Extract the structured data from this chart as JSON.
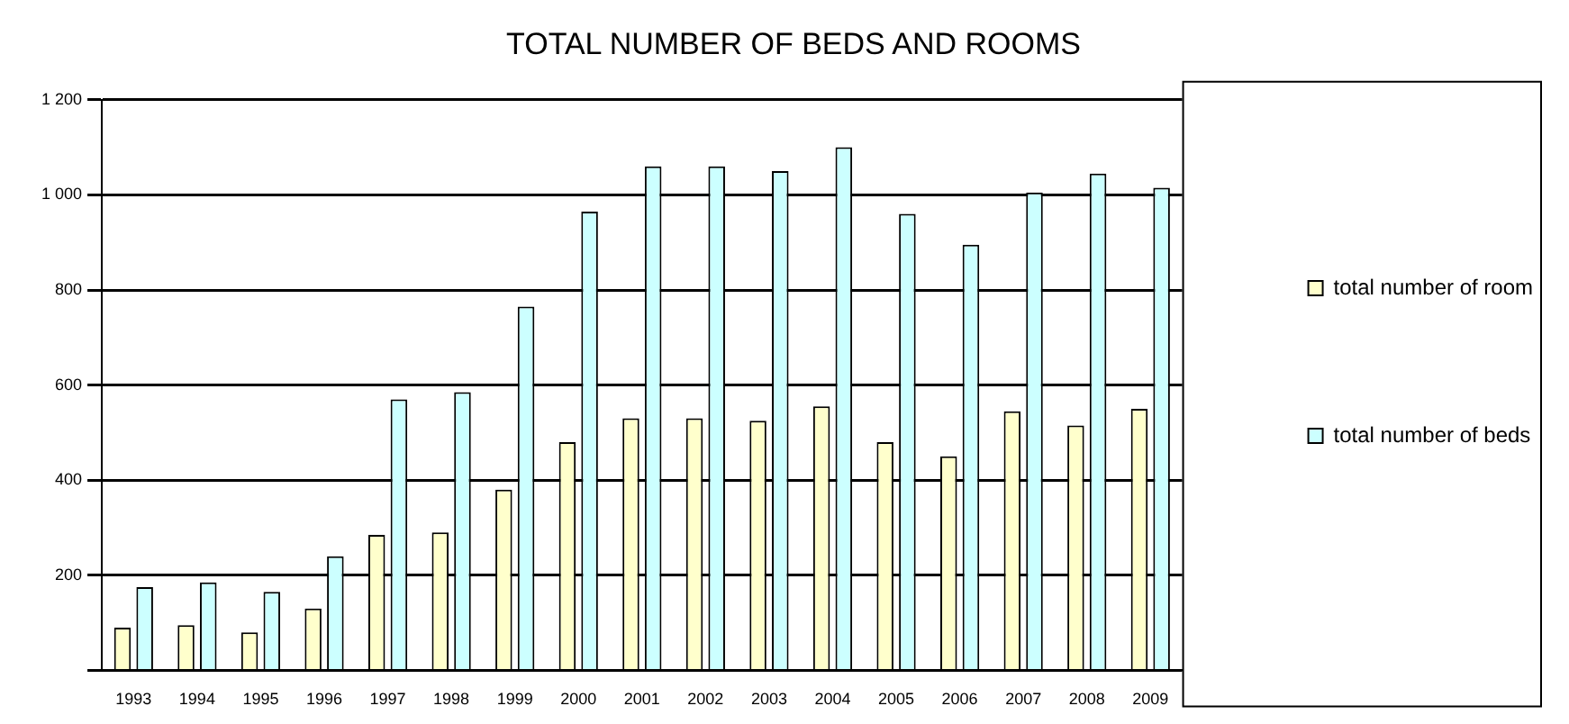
{
  "chart_data": {
    "type": "bar",
    "title": "TOTAL NUMBER OF BEDS AND ROOMS",
    "categories": [
      "1993",
      "1994",
      "1995",
      "1996",
      "1997",
      "1998",
      "1999",
      "2000",
      "2001",
      "2002",
      "2003",
      "2004",
      "2005",
      "2006",
      "2007",
      "2008",
      "2009"
    ],
    "series": [
      {
        "name": "total number of room",
        "color": "#ffffcc",
        "values": [
          90,
          95,
          80,
          130,
          285,
          290,
          380,
          480,
          530,
          530,
          525,
          555,
          480,
          450,
          545,
          515,
          550
        ]
      },
      {
        "name": "total number of beds",
        "color": "#ccffff",
        "values": [
          175,
          185,
          165,
          240,
          570,
          585,
          765,
          965,
          1060,
          1060,
          1050,
          1100,
          960,
          895,
          1005,
          1045,
          1015
        ]
      }
    ],
    "ylim": [
      0,
      1200
    ],
    "yticks": [
      {
        "value": 0,
        "label": null
      },
      200,
      400,
      600,
      800,
      {
        "value": 1000,
        "label": "1 000"
      },
      {
        "value": 1200,
        "label": "1 200"
      }
    ],
    "grid": "y",
    "legend": "right"
  }
}
